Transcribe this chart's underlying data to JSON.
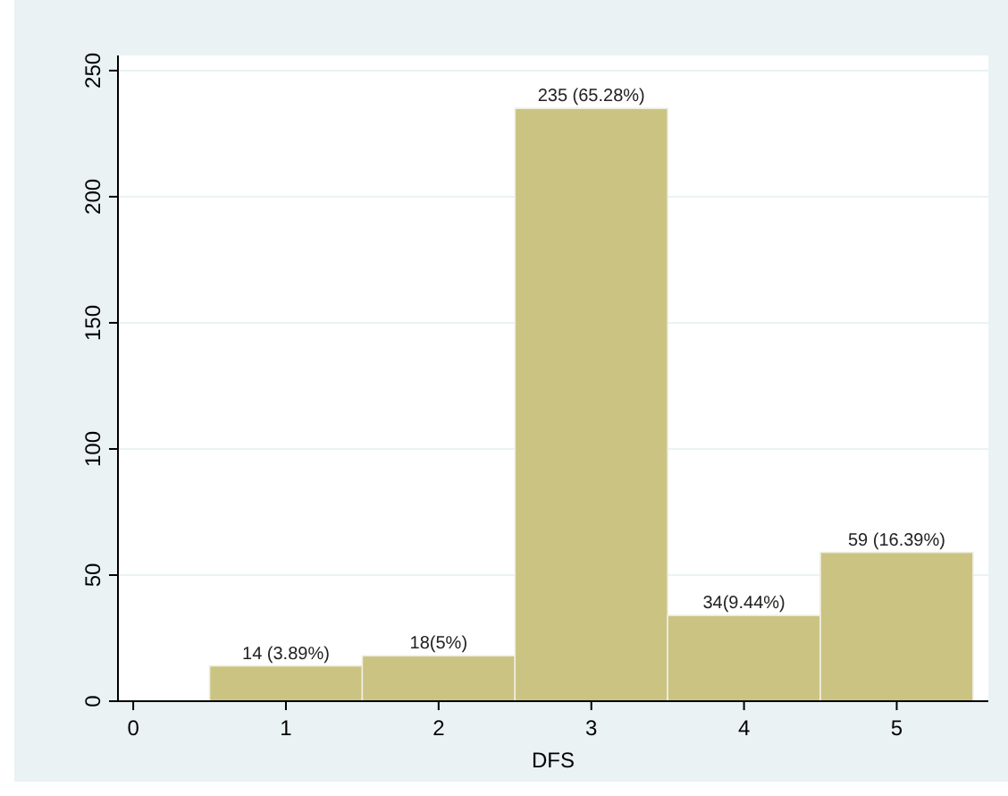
{
  "chart_data": {
    "type": "histogram",
    "xlabel": "DFS",
    "bins": [
      0.5,
      1.5,
      2.5,
      3.5,
      4.5,
      5.5
    ],
    "values": [
      14,
      18,
      235,
      34,
      59
    ],
    "color": "#cbc382",
    "value_labels": [
      "14 (3.89%)",
      "18(5%)",
      "235 (65.28%)",
      "34(9.44%)",
      "59 (16.39%)"
    ],
    "xlim": [
      -0.1,
      5.6
    ],
    "xticks": [
      0,
      1,
      2,
      3,
      4,
      5
    ],
    "ylim": [
      0,
      256
    ],
    "yticks": [
      0,
      50,
      100,
      150,
      200,
      250
    ],
    "grid": "y"
  }
}
